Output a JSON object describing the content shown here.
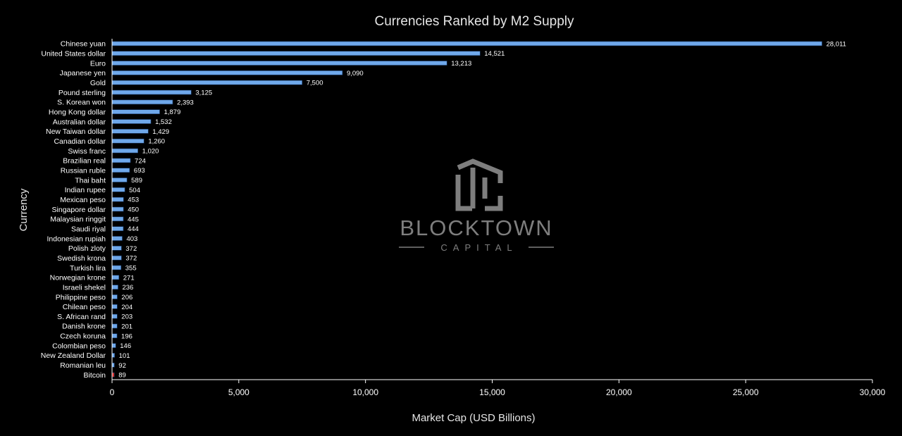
{
  "chart_data": {
    "type": "bar",
    "orientation": "horizontal",
    "title": "Currencies Ranked by M2 Supply",
    "xlabel": "Market Cap (USD Billions)",
    "ylabel": "Currency",
    "xlim": [
      0,
      30000
    ],
    "x_ticks": [
      0,
      5000,
      10000,
      15000,
      20000,
      25000,
      30000
    ],
    "x_tick_labels": [
      "0",
      "5,000",
      "10,000",
      "15,000",
      "20,000",
      "25,000",
      "30,000"
    ],
    "grid": false,
    "categories": [
      "Chinese yuan",
      "United States dollar",
      "Euro",
      "Japanese yen",
      "Gold",
      "Pound sterling",
      "S. Korean won",
      "Hong Kong dollar",
      "Australian dollar",
      "New Taiwan dollar",
      "Canadian dollar",
      "Swiss franc",
      "Brazilian real",
      "Russian ruble",
      "Thai baht",
      "Indian rupee",
      "Mexican peso",
      "Singapore dollar",
      "Malaysian ringgit",
      "Saudi riyal",
      "Indonesian rupiah",
      "Polish zloty",
      "Swedish krona",
      "Turkish lira",
      "Norwegian krone",
      "Israeli shekel",
      "Philippine peso",
      "Chilean peso",
      "S. African rand",
      "Danish krone",
      "Czech koruna",
      "Colombian peso",
      "New Zealand Dollar",
      "Romanian leu",
      "Bitcoin"
    ],
    "values": [
      28011,
      14521,
      13213,
      9090,
      7500,
      3125,
      2393,
      1879,
      1532,
      1429,
      1260,
      1020,
      724,
      693,
      589,
      504,
      453,
      450,
      445,
      444,
      403,
      372,
      372,
      355,
      271,
      236,
      206,
      204,
      203,
      201,
      196,
      146,
      101,
      92,
      89
    ],
    "value_labels": [
      "28,011",
      "14,521",
      "13,213",
      "9,090",
      "7,500",
      "3,125",
      "2,393",
      "1,879",
      "1,532",
      "1,429",
      "1,260",
      "1,020",
      "724",
      "693",
      "589",
      "504",
      "453",
      "450",
      "445",
      "444",
      "403",
      "372",
      "372",
      "355",
      "271",
      "236",
      "206",
      "204",
      "203",
      "201",
      "196",
      "146",
      "101",
      "92",
      "89"
    ],
    "highlight_category": "Bitcoin",
    "colors": {
      "bar": "#6fa8ea",
      "bar_edge": "#1b3a66",
      "highlight_bar": "#e0302b",
      "axis": "#ffffff",
      "background": "#000000",
      "watermark": "#8c8c8c"
    }
  },
  "watermark": {
    "name": "BLOCKTOWN",
    "sub": "CAPITAL"
  }
}
